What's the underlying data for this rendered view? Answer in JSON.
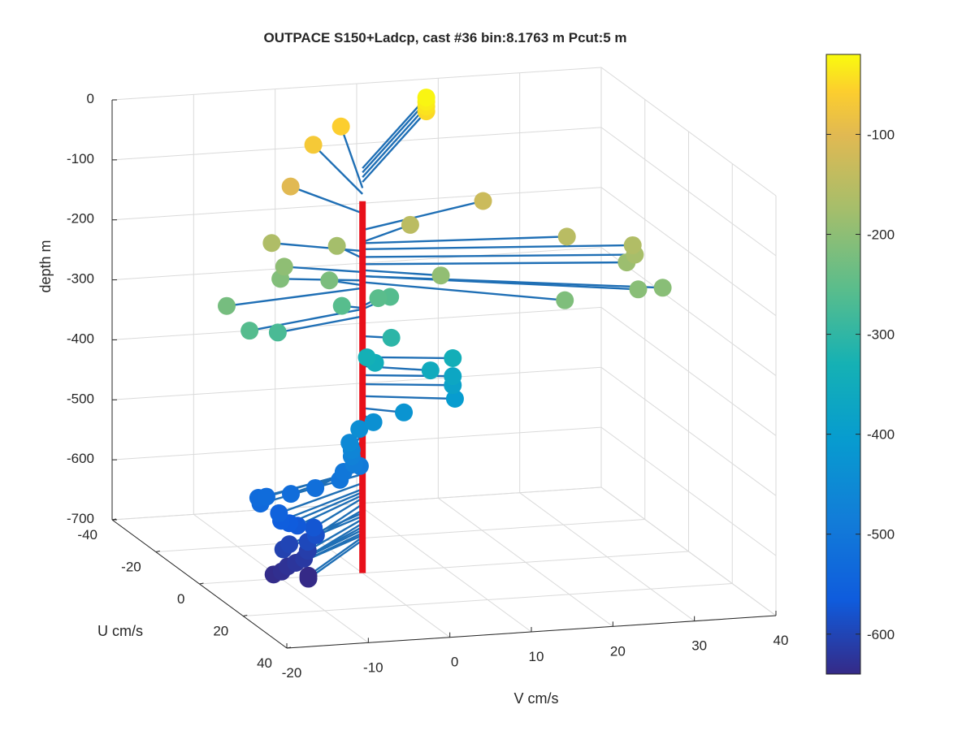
{
  "chart_data": {
    "type": "scatter",
    "title": "OUTPACE S150+Ladcp, cast #36 bin:8.1763 m  Pcut:5 m",
    "xlabel": "V cm/s",
    "ylabel": "U cm/s",
    "zlabel": "depth m",
    "xlim": [
      -20,
      40
    ],
    "ylim": [
      -40,
      40
    ],
    "zlim": [
      -700,
      0
    ],
    "x_ticks": [
      -20,
      -10,
      0,
      10,
      20,
      30,
      40
    ],
    "y_ticks": [
      -40,
      -20,
      0,
      20,
      40
    ],
    "z_ticks": [
      0,
      -100,
      -200,
      -300,
      -400,
      -500,
      -600,
      -700
    ],
    "grid": true,
    "colorbar": {
      "position": "right",
      "range": [
        -640,
        -20
      ],
      "ticks": [
        -100,
        -200,
        -300,
        -400,
        -500,
        -600
      ],
      "colormap": "parula"
    },
    "vertical_profile": {
      "color": "#e8101a",
      "v": 0,
      "u": 0,
      "depth_range": [
        -80,
        -700
      ]
    },
    "stick_color": "#1f6fb5",
    "points": [
      {
        "v": 18,
        "u": -38,
        "depth": -25
      },
      {
        "v": 18,
        "u": -38,
        "depth": -32
      },
      {
        "v": 18,
        "u": -38,
        "depth": -40
      },
      {
        "v": 18,
        "u": -38,
        "depth": -48
      },
      {
        "v": 7,
        "u": -36,
        "depth": -58
      },
      {
        "v": 2,
        "u": -30,
        "depth": -68
      },
      {
        "v": -4,
        "u": -18,
        "depth": -100
      },
      {
        "v": 18,
        "u": -12,
        "depth": -128
      },
      {
        "v": 24,
        "u": 4,
        "depth": -150
      },
      {
        "v": 31,
        "u": 8,
        "depth": -160
      },
      {
        "v": 31,
        "u": 9,
        "depth": -173
      },
      {
        "v": 30,
        "u": 9,
        "depth": -185
      },
      {
        "v": 32,
        "u": 18,
        "depth": -205
      },
      {
        "v": 29,
        "u": 18,
        "depth": -205
      },
      {
        "v": 20,
        "u": 18,
        "depth": -215
      },
      {
        "v": 8,
        "u": -8,
        "depth": -148
      },
      {
        "v": 8,
        "u": 6,
        "depth": -195
      },
      {
        "v": -9,
        "u": -8,
        "depth": -163
      },
      {
        "v": -8,
        "u": -6,
        "depth": -198
      },
      {
        "v": -9,
        "u": -4,
        "depth": -212
      },
      {
        "v": -1,
        "u": -8,
        "depth": -175
      },
      {
        "v": -3,
        "u": -4,
        "depth": -220
      },
      {
        "v": -16,
        "u": 8,
        "depth": -260
      },
      {
        "v": -18,
        "u": 5,
        "depth": -225
      },
      {
        "v": -12,
        "u": 6,
        "depth": -272
      },
      {
        "v": -2,
        "u": -2,
        "depth": -258
      },
      {
        "v": 3,
        "u": -4,
        "depth": -255
      },
      {
        "v": 5,
        "u": -6,
        "depth": -260
      },
      {
        "v": 3,
        "u": 2,
        "depth": -305
      },
      {
        "v": 0,
        "u": 2,
        "depth": -335
      },
      {
        "v": 1,
        "u": 2,
        "depth": -345
      },
      {
        "v": 7,
        "u": 5,
        "depth": -355
      },
      {
        "v": 10,
        "u": 4,
        "depth": -340
      },
      {
        "v": 10,
        "u": 4,
        "depth": -370
      },
      {
        "v": 10,
        "u": 4,
        "depth": -385
      },
      {
        "v": 10,
        "u": 5,
        "depth": -405
      },
      {
        "v": 4,
        "u": 4,
        "depth": -425
      },
      {
        "v": 0,
        "u": 5,
        "depth": -435
      },
      {
        "v": -2,
        "u": 6,
        "depth": -442
      },
      {
        "v": -4,
        "u": 9,
        "depth": -455
      },
      {
        "v": -4,
        "u": 10,
        "depth": -465
      },
      {
        "v": -4,
        "u": 10,
        "depth": -475
      },
      {
        "v": -4,
        "u": 11,
        "depth": -485
      },
      {
        "v": -3,
        "u": 10,
        "depth": -492
      },
      {
        "v": -5,
        "u": 10,
        "depth": -500
      },
      {
        "v": -6,
        "u": 12,
        "depth": -507
      },
      {
        "v": -9,
        "u": 12,
        "depth": -518
      },
      {
        "v": -12,
        "u": 12,
        "depth": -525
      },
      {
        "v": -15,
        "u": 12,
        "depth": -527
      },
      {
        "v": -16,
        "u": 12,
        "depth": -528
      },
      {
        "v": -16,
        "u": 13,
        "depth": -535
      },
      {
        "v": -14,
        "u": 14,
        "depth": -550
      },
      {
        "v": -14,
        "u": 15,
        "depth": -560
      },
      {
        "v": -13,
        "u": 15,
        "depth": -565
      },
      {
        "v": -12,
        "u": 15,
        "depth": -570
      },
      {
        "v": -10,
        "u": 15,
        "depth": -575
      },
      {
        "v": -10,
        "u": 16,
        "depth": -585
      },
      {
        "v": -11,
        "u": 16,
        "depth": -595
      },
      {
        "v": -13,
        "u": 15,
        "depth": -600
      },
      {
        "v": -14,
        "u": 16,
        "depth": -605
      },
      {
        "v": -11,
        "u": 16,
        "depth": -610
      },
      {
        "v": -12,
        "u": 18,
        "depth": -617
      },
      {
        "v": -13,
        "u": 18,
        "depth": -623
      },
      {
        "v": -14,
        "u": 18,
        "depth": -628
      },
      {
        "v": -15,
        "u": 19,
        "depth": -633
      },
      {
        "v": -16,
        "u": 19,
        "depth": -637
      },
      {
        "v": -12,
        "u": 20,
        "depth": -640
      },
      {
        "v": -12,
        "u": 20,
        "depth": -645
      }
    ]
  }
}
